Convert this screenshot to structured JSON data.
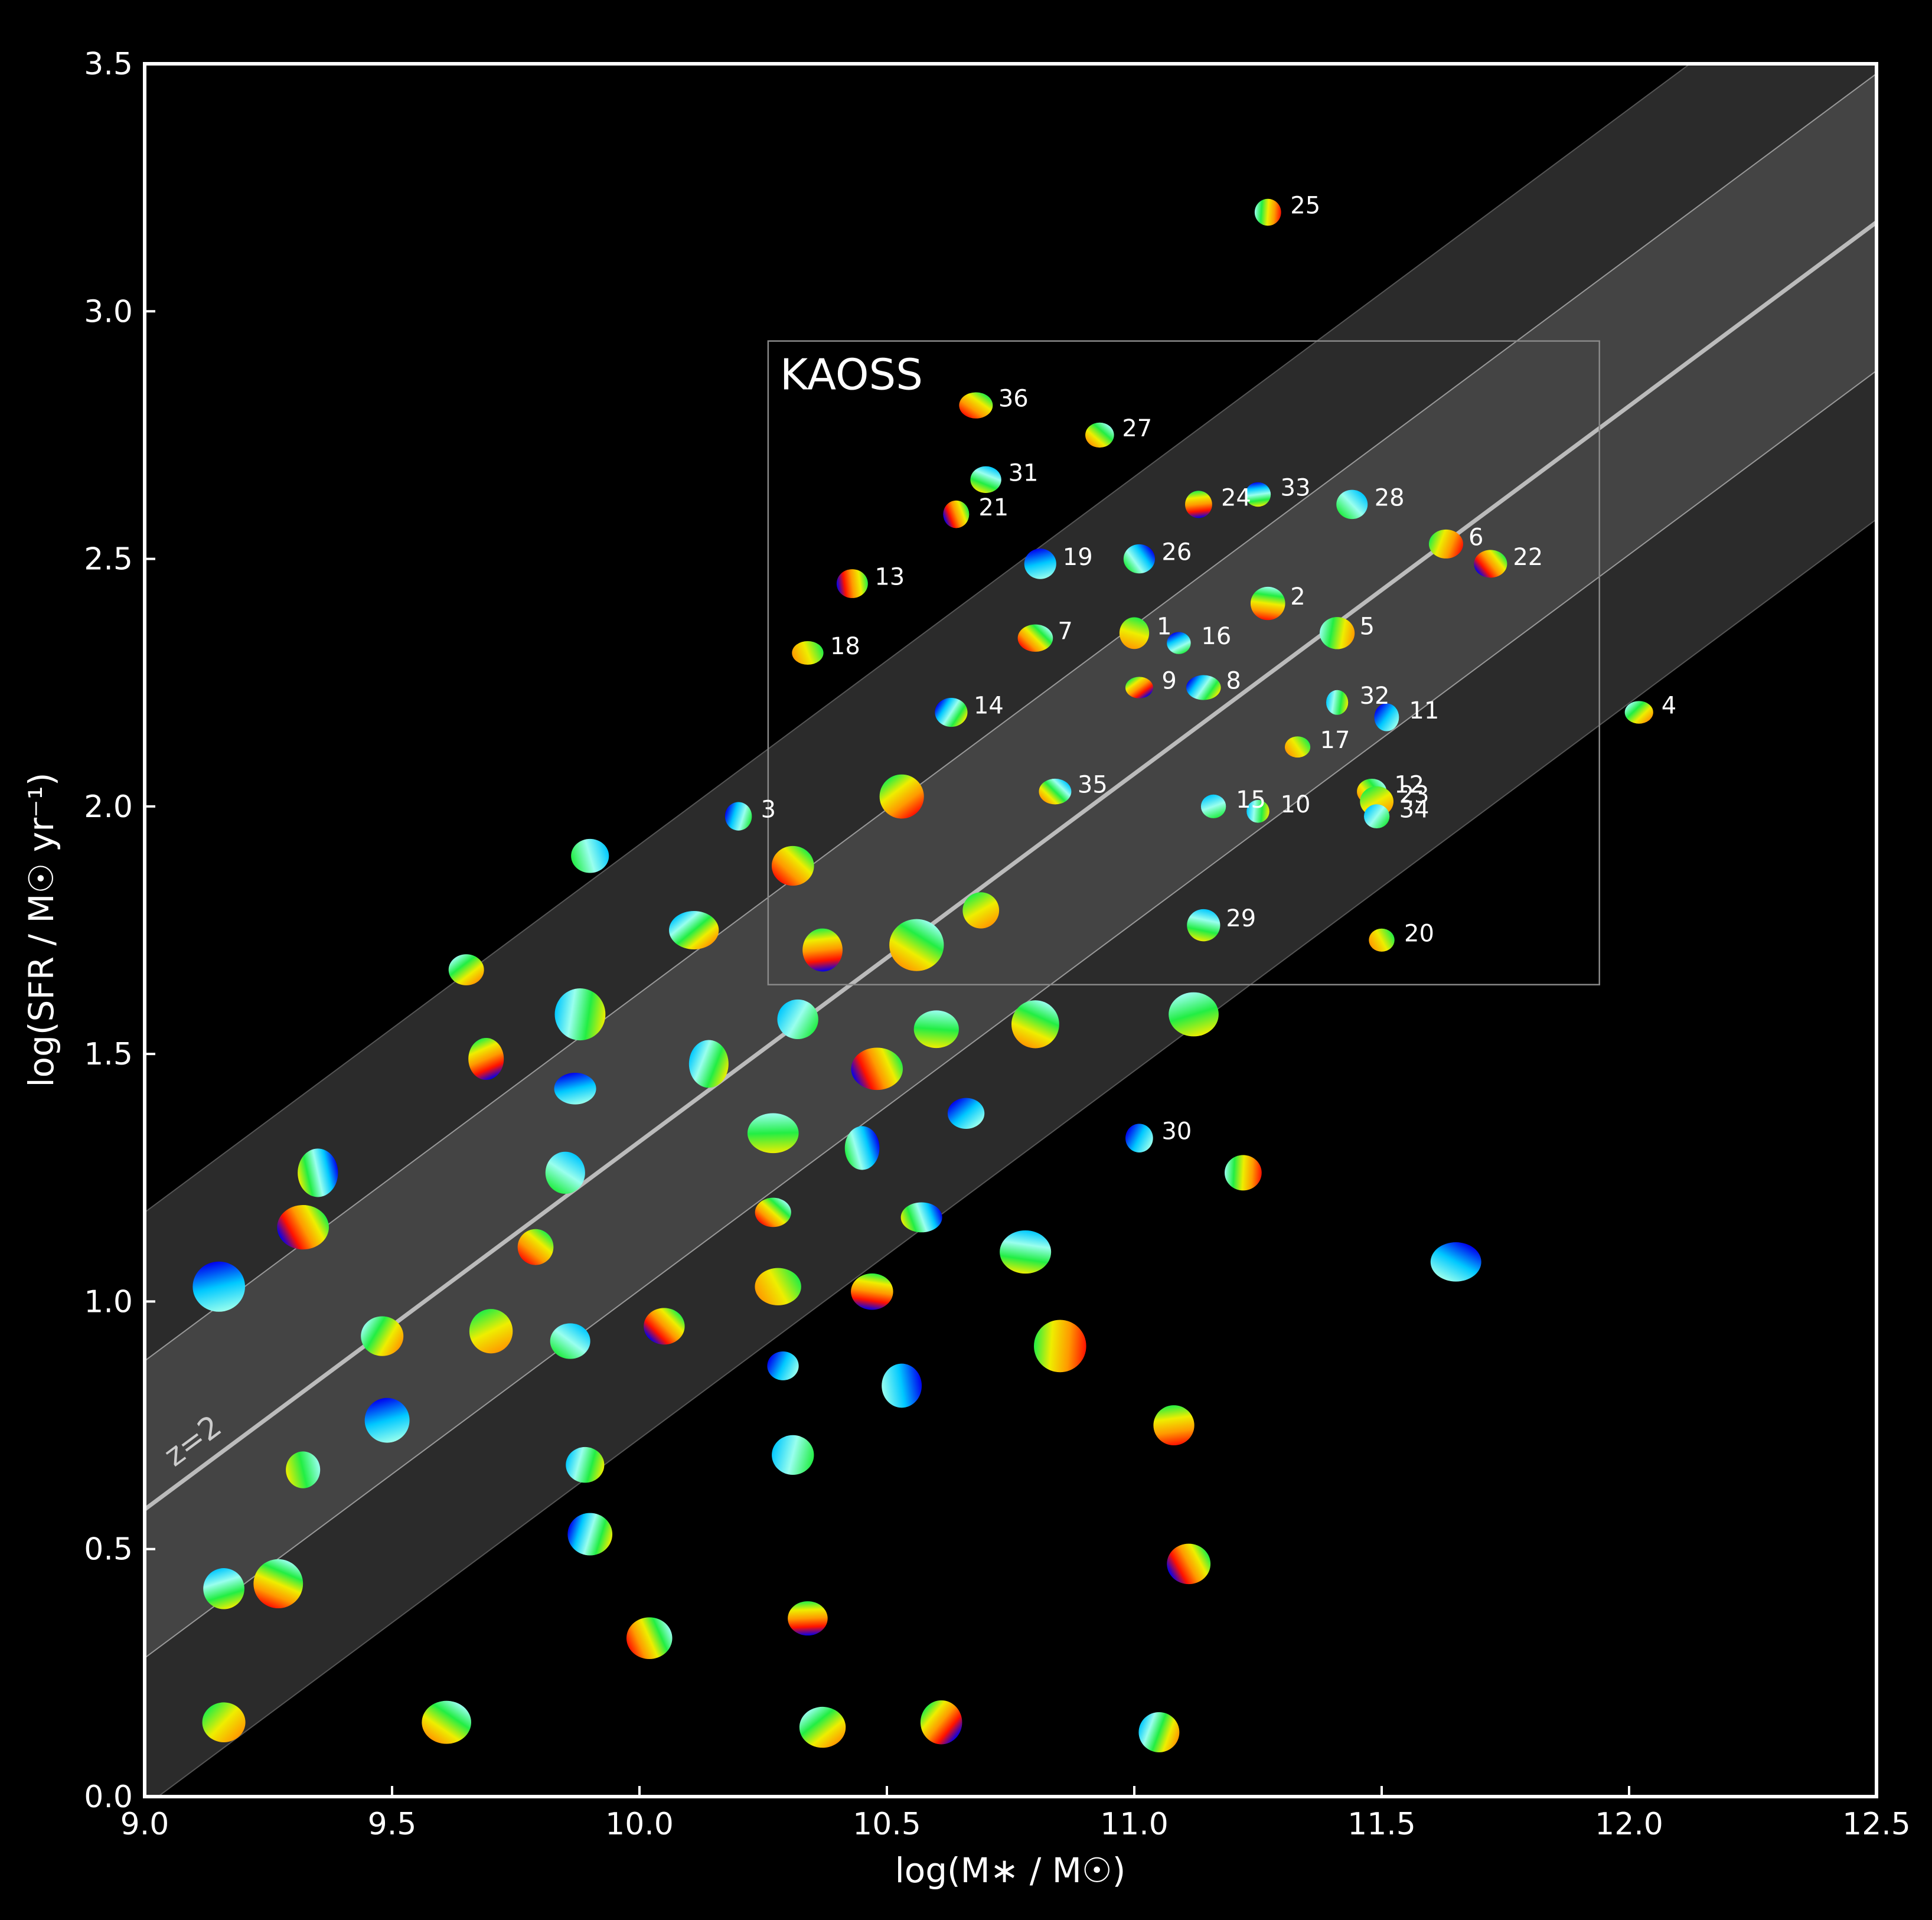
{
  "chart_data": {
    "type": "scatter",
    "xlabel": "log(M∗ / M☉)",
    "ylabel": "log(SFR / M☉ yr⁻¹)",
    "xlim": [
      9.0,
      12.5
    ],
    "ylim": [
      0.0,
      3.5
    ],
    "x_ticks": [
      "9.0",
      "9.5",
      "10.0",
      "10.5",
      "11.0",
      "11.5",
      "12.0",
      "12.5"
    ],
    "y_ticks": [
      "0.0",
      "0.5",
      "1.0",
      "1.5",
      "2.0",
      "2.5",
      "3.0",
      "3.5"
    ],
    "main_sequence": {
      "label": "z=2",
      "x": [
        9.0,
        12.5
      ],
      "y": [
        0.58,
        3.18
      ]
    },
    "inner_band_offset": 0.3,
    "outer_band_offset": 0.6,
    "region": {
      "label": "KAOSS",
      "x": [
        10.26,
        11.94
      ],
      "y": [
        1.64,
        2.94
      ]
    },
    "labeled_galaxies": [
      {
        "id": "1",
        "x": 11.0,
        "y": 2.35
      },
      {
        "id": "2",
        "x": 11.27,
        "y": 2.41
      },
      {
        "id": "3",
        "x": 10.2,
        "y": 1.98
      },
      {
        "id": "4",
        "x": 12.02,
        "y": 2.19
      },
      {
        "id": "5",
        "x": 11.41,
        "y": 2.35
      },
      {
        "id": "6",
        "x": 11.63,
        "y": 2.53
      },
      {
        "id": "7",
        "x": 10.8,
        "y": 2.34
      },
      {
        "id": "8",
        "x": 11.14,
        "y": 2.24
      },
      {
        "id": "9",
        "x": 11.01,
        "y": 2.24
      },
      {
        "id": "10",
        "x": 11.25,
        "y": 1.99
      },
      {
        "id": "11",
        "x": 11.51,
        "y": 2.18
      },
      {
        "id": "12",
        "x": 11.48,
        "y": 2.03
      },
      {
        "id": "13",
        "x": 10.43,
        "y": 2.45
      },
      {
        "id": "14",
        "x": 10.63,
        "y": 2.19
      },
      {
        "id": "15",
        "x": 11.16,
        "y": 2.0
      },
      {
        "id": "16",
        "x": 11.09,
        "y": 2.33
      },
      {
        "id": "17",
        "x": 11.33,
        "y": 2.12
      },
      {
        "id": "18",
        "x": 10.34,
        "y": 2.31
      },
      {
        "id": "19",
        "x": 10.81,
        "y": 2.49
      },
      {
        "id": "20",
        "x": 11.5,
        "y": 1.73
      },
      {
        "id": "21",
        "x": 10.64,
        "y": 2.59
      },
      {
        "id": "22",
        "x": 11.72,
        "y": 2.49
      },
      {
        "id": "23",
        "x": 11.49,
        "y": 2.01
      },
      {
        "id": "24",
        "x": 11.13,
        "y": 2.61
      },
      {
        "id": "25",
        "x": 11.27,
        "y": 3.2
      },
      {
        "id": "26",
        "x": 11.01,
        "y": 2.5
      },
      {
        "id": "27",
        "x": 10.93,
        "y": 2.75
      },
      {
        "id": "28",
        "x": 11.44,
        "y": 2.61
      },
      {
        "id": "29",
        "x": 11.14,
        "y": 1.76
      },
      {
        "id": "30",
        "x": 11.01,
        "y": 1.33
      },
      {
        "id": "31",
        "x": 10.7,
        "y": 2.66
      },
      {
        "id": "32",
        "x": 11.41,
        "y": 2.21
      },
      {
        "id": "33",
        "x": 11.25,
        "y": 2.63
      },
      {
        "id": "34",
        "x": 11.49,
        "y": 1.98
      },
      {
        "id": "35",
        "x": 10.84,
        "y": 2.03
      },
      {
        "id": "36",
        "x": 10.68,
        "y": 2.81
      }
    ],
    "other_galaxies": [
      [
        9.9,
        1.9
      ],
      [
        10.31,
        1.88
      ],
      [
        10.11,
        1.75
      ],
      [
        10.37,
        1.71
      ],
      [
        10.56,
        1.72
      ],
      [
        10.69,
        1.79
      ],
      [
        10.53,
        2.02
      ],
      [
        9.65,
        1.67
      ],
      [
        9.88,
        1.58
      ],
      [
        10.32,
        1.57
      ],
      [
        10.6,
        1.55
      ],
      [
        10.8,
        1.56
      ],
      [
        11.12,
        1.58
      ],
      [
        9.69,
        1.49
      ],
      [
        9.87,
        1.43
      ],
      [
        10.14,
        1.48
      ],
      [
        10.48,
        1.47
      ],
      [
        10.66,
        1.38
      ],
      [
        10.27,
        1.34
      ],
      [
        10.45,
        1.31
      ],
      [
        9.35,
        1.26
      ],
      [
        9.85,
        1.26
      ],
      [
        10.27,
        1.18
      ],
      [
        10.57,
        1.17
      ],
      [
        9.32,
        1.15
      ],
      [
        9.79,
        1.11
      ],
      [
        10.78,
        1.1
      ],
      [
        9.15,
        1.03
      ],
      [
        10.28,
        1.03
      ],
      [
        10.47,
        1.02
      ],
      [
        9.48,
        0.93
      ],
      [
        9.7,
        0.94
      ],
      [
        9.86,
        0.92
      ],
      [
        10.05,
        0.95
      ],
      [
        10.85,
        0.91
      ],
      [
        10.29,
        0.87
      ],
      [
        10.53,
        0.83
      ],
      [
        11.08,
        0.75
      ],
      [
        9.49,
        0.76
      ],
      [
        9.32,
        0.66
      ],
      [
        9.89,
        0.67
      ],
      [
        10.31,
        0.69
      ],
      [
        9.9,
        0.53
      ],
      [
        11.11,
        0.47
      ],
      [
        9.16,
        0.42
      ],
      [
        9.27,
        0.43
      ],
      [
        10.34,
        0.36
      ],
      [
        10.02,
        0.32
      ],
      [
        9.16,
        0.15
      ],
      [
        9.61,
        0.15
      ],
      [
        10.37,
        0.14
      ],
      [
        10.61,
        0.15
      ],
      [
        11.05,
        0.13
      ],
      [
        11.22,
        1.26
      ],
      [
        11.65,
        1.08
      ]
    ]
  },
  "colors": {
    "background": "#000000",
    "outer_band": "#2b2b2b",
    "inner_band": "#444444",
    "line": "#bbbbbb",
    "axes": "#ffffff",
    "galaxy_palette": [
      "#0000ee",
      "#00c8ff",
      "#99ffee",
      "#22ee44",
      "#eeee00",
      "#ff9900",
      "#ff1100"
    ]
  }
}
